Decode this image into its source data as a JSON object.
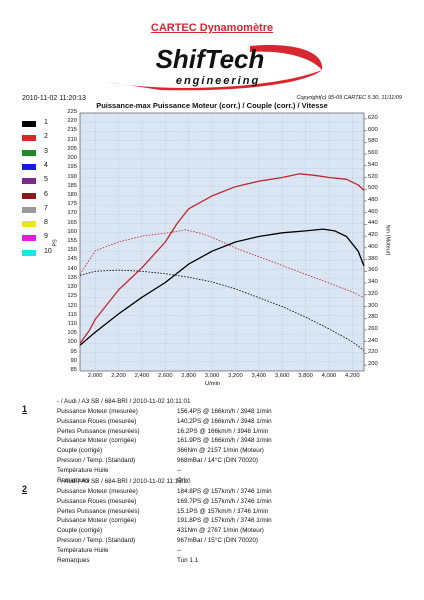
{
  "header": {
    "company_title": "CARTEC Dynamomètre",
    "logo_top": "ShifTech",
    "logo_bottom": "engineering",
    "timestamp": "2010-11-02 11:20:13",
    "copyright": "Copyright(c) 95-09 CARTEC 5.30, 11/11/09"
  },
  "colors": {
    "accent_red": "#d8262e",
    "curve_run1": "#000000",
    "curve_run2": "#c0282a",
    "plot_bg": "#dbe6f5"
  },
  "legend": [
    {
      "num": "1",
      "color": "#000000"
    },
    {
      "num": "2",
      "color": "#d8262e"
    },
    {
      "num": "3",
      "color": "#1f8a2a"
    },
    {
      "num": "4",
      "color": "#1a1ae6"
    },
    {
      "num": "5",
      "color": "#7a2a8a"
    },
    {
      "num": "6",
      "color": "#8a1a1a"
    },
    {
      "num": "7",
      "color": "#9a9a9a"
    },
    {
      "num": "8",
      "color": "#e6e61a"
    },
    {
      "num": "9",
      "color": "#e61ae6"
    },
    {
      "num": "10",
      "color": "#1ae6e6"
    }
  ],
  "chart_data": {
    "type": "line",
    "title": "Puissance-max Puissance Moteur (corr.) / Couple (corr.) / Vitesse",
    "xlabel": "U/min",
    "ylabel": "PS",
    "y2label": "Nm (Moteur)",
    "xlim": [
      1870,
      4300
    ],
    "ylim": [
      85,
      225
    ],
    "y2lim": [
      190,
      630
    ],
    "x_ticks": [
      "2,000",
      "2,200",
      "2,400",
      "2,600",
      "2,800",
      "3,000",
      "3,200",
      "3,400",
      "3,600",
      "3,800",
      "4,000",
      "4,200"
    ],
    "y_ticks": [
      "225",
      "220",
      "215",
      "210",
      "205",
      "200",
      "195",
      "190",
      "185",
      "180",
      "175",
      "170",
      "165",
      "160",
      "155",
      "150",
      "145",
      "140",
      "135",
      "130",
      "125",
      "120",
      "115",
      "110",
      "105",
      "100",
      "95",
      "90",
      "85"
    ],
    "y2_ticks": [
      "620",
      "600",
      "580",
      "560",
      "540",
      "520",
      "500",
      "480",
      "460",
      "440",
      "420",
      "400",
      "380",
      "360",
      "340",
      "320",
      "300",
      "280",
      "260",
      "240",
      "220",
      "200"
    ],
    "grid": true,
    "series": [
      {
        "name": "1",
        "kind": "power",
        "axis": "left",
        "color": "#000000",
        "style": "solid",
        "x": [
          1870,
          2000,
          2200,
          2400,
          2600,
          2800,
          3000,
          3200,
          3400,
          3600,
          3800,
          3950,
          4050,
          4150,
          4250,
          4300
        ],
        "y": [
          99,
          106,
          116,
          125,
          133,
          143,
          150,
          155,
          158,
          160,
          161,
          162,
          161,
          158,
          150,
          142
        ]
      },
      {
        "name": "1",
        "kind": "torque",
        "axis": "right",
        "color": "#000000",
        "style": "dotted",
        "x": [
          1870,
          2000,
          2200,
          2400,
          2600,
          2800,
          3000,
          3200,
          3400,
          3600,
          3800,
          4000,
          4200,
          4300
        ],
        "y": [
          353,
          360,
          362,
          360,
          356,
          350,
          342,
          330,
          315,
          300,
          282,
          262,
          240,
          225
        ]
      },
      {
        "name": "2",
        "kind": "power",
        "axis": "left",
        "color": "#c0282a",
        "style": "solid",
        "x": [
          1870,
          1950,
          2000,
          2200,
          2400,
          2600,
          2700,
          2800,
          3000,
          3200,
          3400,
          3600,
          3750,
          3900,
          4000,
          4150,
          4250,
          4300
        ],
        "y": [
          100,
          107,
          113,
          129,
          141,
          155,
          165,
          173,
          180,
          185,
          188,
          190,
          192,
          191,
          190,
          189,
          186,
          183
        ]
      },
      {
        "name": "2",
        "kind": "torque",
        "axis": "right",
        "color": "#c0282a",
        "style": "dotted",
        "x": [
          1870,
          2000,
          2200,
          2400,
          2600,
          2700,
          2770,
          2900,
          3000,
          3200,
          3400,
          3600,
          3800,
          4000,
          4200,
          4300
        ],
        "y": [
          355,
          395,
          410,
          420,
          425,
          428,
          431,
          425,
          418,
          400,
          385,
          370,
          355,
          340,
          325,
          315
        ]
      }
    ]
  },
  "runs": [
    {
      "id": "1",
      "header": "- / Audi / A3 SB / 684-BRI / 2010-11-02 10:11:01",
      "rows": [
        {
          "label": "Puissance Moteur (mesurée)",
          "value": "156.4PS @ 166km/h / 3948 1/min"
        },
        {
          "label": "Puissance Roues (mesurée)",
          "value": "140.2PS @ 166km/h / 3948 1/min"
        },
        {
          "label": "Pertes Puissance (mesurées)",
          "value": "16.2PS @ 166km/h / 3948 1/min"
        },
        {
          "label": "Puissance Moteur (corrigée)",
          "value": "161.9PS @ 166km/h / 3948 1/min"
        },
        {
          "label": "Couple (corrigé)",
          "value": "366Nm @ 2157 1/min (Moteur)"
        },
        {
          "label": "Pression / Temp. (Standard)",
          "value": "968mBar / 14°C    (DIN 70020)"
        },
        {
          "label": "Température Huile",
          "value": "--"
        },
        {
          "label": "Remarques",
          "value": "Ori"
        }
      ]
    },
    {
      "id": "2",
      "header": "- / Audi / A3 SB / 684-BRI / 2010-11-02 11:16:30",
      "rows": [
        {
          "label": "Puissance Moteur (mesurée)",
          "value": "184.8PS @ 157km/h / 3746 1/min"
        },
        {
          "label": "Puissance Roues (mesurée)",
          "value": "169.7PS @ 157km/h / 3746 1/min"
        },
        {
          "label": "Pertes Puissance (mesurées)",
          "value": "15.1PS @ 157km/h / 3746 1/min"
        },
        {
          "label": "Puissance Moteur (corrigée)",
          "value": "191.8PS @ 157km/h / 3746 1/min"
        },
        {
          "label": "Couple (corrigé)",
          "value": "431Nm @ 2767 1/min (Moteur)"
        },
        {
          "label": "Pression / Temp. (Standard)",
          "value": "967mBar / 15°C    (DIN 70020)"
        },
        {
          "label": "Température Huile",
          "value": "--"
        },
        {
          "label": "Remarques",
          "value": "Tun 1.1"
        }
      ]
    }
  ]
}
